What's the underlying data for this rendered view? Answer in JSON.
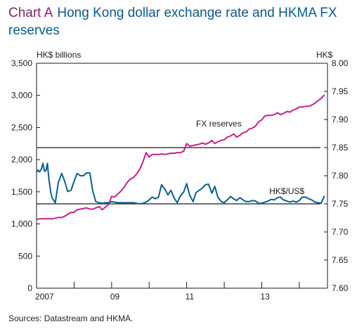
{
  "title": {
    "label": "Chart A",
    "text": "Hong Kong dollar exchange rate and HKMA FX reserves"
  },
  "source": "Sources: Datastream and HKMA.",
  "colors": {
    "reserves": "#c4228a",
    "hkd": "#0b5e8e",
    "axis": "#1a1a1a",
    "title": "#0a5a8c",
    "title_label": "#8a1f6e"
  },
  "chart_data": {
    "type": "line",
    "left_axis": {
      "label": "HK$ billions",
      "range": [
        0,
        3500
      ],
      "ticks": [
        0,
        500,
        1000,
        1500,
        2000,
        2500,
        3000,
        3500
      ],
      "tick_labels": [
        "0",
        "500",
        "1,000",
        "1,500",
        "2,000",
        "2,500",
        "3,000",
        "3,500"
      ]
    },
    "right_axis": {
      "label": "HK$",
      "range": [
        7.6,
        8.0
      ],
      "ticks": [
        7.6,
        7.65,
        7.7,
        7.75,
        7.8,
        7.85,
        7.9,
        7.95,
        8.0
      ],
      "tick_labels": [
        "7.60",
        "7.65",
        "7.70",
        "7.75",
        "7.80",
        "7.85",
        "7.90",
        "7.95",
        "8.00"
      ]
    },
    "x_axis": {
      "range": [
        2007.0,
        2014.75
      ],
      "tick_labels": [
        {
          "value": 2007.0,
          "label": "2007"
        },
        {
          "value": 2009.0,
          "label": "09"
        },
        {
          "value": 2011.0,
          "label": "11"
        },
        {
          "value": 2013.0,
          "label": "13"
        }
      ],
      "minor_ticks": [
        2008.0,
        2010.0,
        2012.0,
        2014.0
      ]
    },
    "reference_lines": [
      {
        "axis": "right",
        "value": 7.85
      },
      {
        "axis": "right",
        "value": 7.75
      }
    ],
    "series": [
      {
        "name": "FX reserves",
        "axis": "left",
        "color": "#c4228a",
        "x": [
          2007.0,
          2007.08,
          2007.17,
          2007.25,
          2007.33,
          2007.42,
          2007.5,
          2007.58,
          2007.67,
          2007.75,
          2007.83,
          2007.92,
          2008.0,
          2008.08,
          2008.17,
          2008.25,
          2008.33,
          2008.42,
          2008.5,
          2008.58,
          2008.67,
          2008.75,
          2008.83,
          2008.92,
          2009.0,
          2009.08,
          2009.17,
          2009.25,
          2009.33,
          2009.42,
          2009.5,
          2009.58,
          2009.67,
          2009.75,
          2009.83,
          2009.92,
          2010.0,
          2010.08,
          2010.17,
          2010.25,
          2010.33,
          2010.42,
          2010.5,
          2010.58,
          2010.67,
          2010.75,
          2010.83,
          2010.92,
          2011.0,
          2011.08,
          2011.17,
          2011.25,
          2011.33,
          2011.42,
          2011.5,
          2011.58,
          2011.67,
          2011.75,
          2011.83,
          2011.92,
          2012.0,
          2012.08,
          2012.17,
          2012.25,
          2012.33,
          2012.42,
          2012.5,
          2012.58,
          2012.67,
          2012.75,
          2012.83,
          2012.92,
          2013.0,
          2013.08,
          2013.17,
          2013.25,
          2013.33,
          2013.42,
          2013.5,
          2013.58,
          2013.67,
          2013.75,
          2013.83,
          2013.92,
          2014.0,
          2014.08,
          2014.17,
          2014.25,
          2014.33,
          2014.42,
          2014.5,
          2014.58,
          2014.67
        ],
        "values": [
          1070,
          1080,
          1080,
          1080,
          1080,
          1080,
          1090,
          1100,
          1100,
          1120,
          1150,
          1180,
          1180,
          1220,
          1230,
          1240,
          1250,
          1230,
          1230,
          1250,
          1270,
          1220,
          1260,
          1300,
          1430,
          1420,
          1470,
          1510,
          1570,
          1650,
          1700,
          1720,
          1780,
          1850,
          1960,
          2110,
          2040,
          2080,
          2080,
          2080,
          2090,
          2080,
          2090,
          2100,
          2100,
          2110,
          2110,
          2130,
          2250,
          2210,
          2220,
          2230,
          2240,
          2260,
          2240,
          2260,
          2300,
          2250,
          2280,
          2300,
          2310,
          2350,
          2370,
          2400,
          2350,
          2380,
          2420,
          2430,
          2480,
          2490,
          2520,
          2590,
          2620,
          2680,
          2690,
          2690,
          2700,
          2730,
          2700,
          2720,
          2750,
          2740,
          2770,
          2790,
          2820,
          2820,
          2830,
          2830,
          2850,
          2880,
          2920,
          2950,
          3010
        ]
      },
      {
        "name": "HK$/US$",
        "axis": "right",
        "color": "#0b5e8e",
        "x": [
          2007.0,
          2007.04,
          2007.08,
          2007.13,
          2007.17,
          2007.21,
          2007.25,
          2007.29,
          2007.33,
          2007.38,
          2007.42,
          2007.5,
          2007.58,
          2007.67,
          2007.75,
          2007.83,
          2007.92,
          2008.0,
          2008.08,
          2008.17,
          2008.25,
          2008.33,
          2008.42,
          2008.5,
          2008.58,
          2008.67,
          2008.75,
          2008.83,
          2008.92,
          2009.0,
          2009.08,
          2009.17,
          2009.25,
          2009.33,
          2009.42,
          2009.5,
          2009.58,
          2009.67,
          2009.75,
          2009.83,
          2009.92,
          2010.0,
          2010.08,
          2010.17,
          2010.25,
          2010.33,
          2010.42,
          2010.5,
          2010.58,
          2010.67,
          2010.75,
          2010.83,
          2010.92,
          2011.0,
          2011.08,
          2011.17,
          2011.25,
          2011.33,
          2011.42,
          2011.5,
          2011.58,
          2011.67,
          2011.75,
          2011.83,
          2011.92,
          2012.0,
          2012.08,
          2012.17,
          2012.25,
          2012.33,
          2012.42,
          2012.5,
          2012.58,
          2012.67,
          2012.75,
          2012.83,
          2012.92,
          2013.0,
          2013.08,
          2013.17,
          2013.25,
          2013.33,
          2013.42,
          2013.5,
          2013.58,
          2013.67,
          2013.75,
          2013.83,
          2013.92,
          2014.0,
          2014.08,
          2014.17,
          2014.25,
          2014.33,
          2014.42,
          2014.5,
          2014.58,
          2014.67
        ],
        "values": [
          7.806,
          7.81,
          7.807,
          7.812,
          7.822,
          7.808,
          7.809,
          7.822,
          7.794,
          7.77,
          7.76,
          7.752,
          7.788,
          7.804,
          7.79,
          7.772,
          7.774,
          7.79,
          7.804,
          7.8,
          7.8,
          7.805,
          7.805,
          7.772,
          7.754,
          7.752,
          7.751,
          7.752,
          7.752,
          7.754,
          7.753,
          7.752,
          7.752,
          7.752,
          7.752,
          7.752,
          7.752,
          7.751,
          7.75,
          7.751,
          7.753,
          7.757,
          7.762,
          7.759,
          7.762,
          7.784,
          7.776,
          7.766,
          7.774,
          7.76,
          7.752,
          7.764,
          7.771,
          7.786,
          7.765,
          7.754,
          7.77,
          7.774,
          7.778,
          7.784,
          7.785,
          7.769,
          7.781,
          7.762,
          7.754,
          7.752,
          7.757,
          7.763,
          7.759,
          7.756,
          7.761,
          7.757,
          7.754,
          7.754,
          7.756,
          7.755,
          7.751,
          7.751,
          7.753,
          7.755,
          7.758,
          7.757,
          7.761,
          7.762,
          7.757,
          7.755,
          7.753,
          7.755,
          7.753,
          7.756,
          7.762,
          7.762,
          7.759,
          7.757,
          7.753,
          7.752,
          7.751,
          7.764
        ]
      }
    ],
    "annotations": [
      {
        "text": "FX reserves",
        "series": "FX reserves"
      },
      {
        "text": "HK$/US$",
        "series": "HK$/US$"
      }
    ]
  }
}
